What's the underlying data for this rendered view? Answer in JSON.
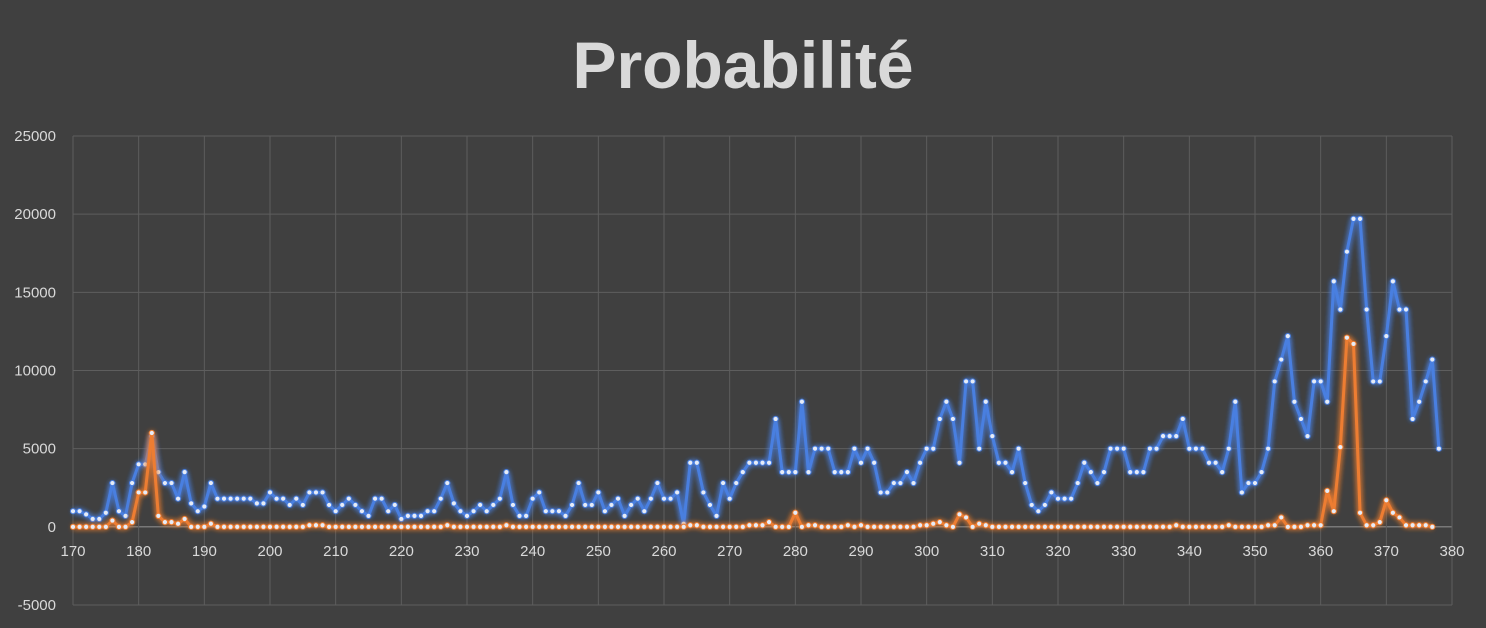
{
  "chart_data": {
    "type": "line",
    "title": "Probabilité",
    "xlabel": "",
    "ylabel": "",
    "xlim": [
      170,
      380
    ],
    "ylim": [
      -5000,
      25000
    ],
    "x_ticks": [
      "170",
      "180",
      "190",
      "200",
      "210",
      "220",
      "230",
      "240",
      "250",
      "260",
      "270",
      "280",
      "290",
      "300",
      "310",
      "320",
      "330",
      "340",
      "350",
      "360",
      "370",
      "380"
    ],
    "y_ticks": [
      "-5000",
      "0",
      "5000",
      "10000",
      "15000",
      "20000",
      "25000"
    ],
    "grid": true,
    "legend": "none",
    "x_start": 170,
    "x_end": 376,
    "series": [
      {
        "color": "#4a7fe0",
        "values": [
          1000,
          1000,
          800,
          500,
          500,
          900,
          2800,
          1000,
          700,
          2800,
          4000,
          4000,
          5800,
          3500,
          2800,
          2800,
          1800,
          3500,
          1500,
          1000,
          1300,
          2800,
          1800,
          1800,
          1800,
          1800,
          1800,
          1800,
          1500,
          1500,
          2200,
          1800,
          1800,
          1400,
          1800,
          1400,
          2200,
          2200,
          2200,
          1400,
          1000,
          1400,
          1800,
          1400,
          1000,
          700,
          1800,
          1800,
          1000,
          1400,
          500,
          700,
          700,
          700,
          1000,
          1000,
          1800,
          2800,
          1500,
          1000,
          700,
          1000,
          1400,
          1000,
          1400,
          1800,
          3500,
          1400,
          700,
          700,
          1800,
          2200,
          1000,
          1000,
          1000,
          700,
          1400,
          2800,
          1400,
          1400,
          2200,
          1000,
          1400,
          1800,
          700,
          1400,
          1800,
          1000,
          1800,
          2800,
          1800,
          1800,
          2200,
          200,
          4100,
          4100,
          2200,
          1400,
          700,
          2800,
          1800,
          2800,
          3500,
          4100,
          4100,
          4100,
          4100,
          6900,
          3500,
          3500,
          3500,
          8000,
          3500,
          5000,
          5000,
          5000,
          3500,
          3500,
          3500,
          5000,
          4100,
          5000,
          4100,
          2200,
          2200,
          2800,
          2800,
          3500,
          2800,
          4100,
          5000,
          5000,
          6900,
          8000,
          6900,
          4100,
          9300,
          9300,
          5000,
          8000,
          5800,
          4100,
          4100,
          3500,
          5000,
          2800,
          1400,
          1000,
          1400,
          2200,
          1800,
          1800,
          1800,
          2800,
          4100,
          3500,
          2800,
          3500,
          5000,
          5000,
          5000,
          3500,
          3500,
          3500,
          5000,
          5000,
          5800,
          5800,
          5800,
          6900,
          5000,
          5000,
          5000,
          4100,
          4100,
          3500,
          5000,
          8000,
          2200,
          2800,
          2800,
          3500,
          5000,
          9300,
          10700,
          12200,
          8000,
          6900,
          5800,
          9300,
          9300,
          8000,
          15700,
          13900,
          17600,
          19700,
          19700,
          13900,
          9300,
          9300,
          12200,
          15700,
          13900,
          13900,
          6900,
          8000,
          9300,
          10700,
          5000
        ]
      },
      {
        "color": "#ed7d31",
        "values": [
          0,
          0,
          0,
          0,
          0,
          0,
          400,
          0,
          0,
          300,
          2200,
          2200,
          6000,
          700,
          300,
          300,
          200,
          500,
          0,
          0,
          0,
          200,
          0,
          0,
          0,
          0,
          0,
          0,
          0,
          0,
          0,
          0,
          0,
          0,
          0,
          0,
          100,
          100,
          100,
          0,
          0,
          0,
          0,
          0,
          0,
          0,
          0,
          0,
          0,
          0,
          0,
          0,
          0,
          0,
          0,
          0,
          0,
          100,
          0,
          0,
          0,
          0,
          0,
          0,
          0,
          0,
          100,
          0,
          0,
          0,
          0,
          0,
          0,
          0,
          0,
          0,
          0,
          0,
          0,
          0,
          0,
          0,
          0,
          0,
          0,
          0,
          0,
          0,
          0,
          0,
          0,
          0,
          0,
          0,
          100,
          100,
          0,
          0,
          0,
          0,
          0,
          0,
          0,
          100,
          100,
          100,
          300,
          0,
          0,
          0,
          900,
          0,
          100,
          100,
          0,
          0,
          0,
          0,
          100,
          0,
          100,
          0,
          0,
          0,
          0,
          0,
          0,
          0,
          0,
          100,
          100,
          200,
          300,
          100,
          0,
          800,
          600,
          0,
          200,
          100,
          0,
          0,
          0,
          0,
          0,
          0,
          0,
          0,
          0,
          0,
          0,
          0,
          0,
          0,
          0,
          0,
          0,
          0,
          0,
          0,
          0,
          0,
          0,
          0,
          0,
          0,
          0,
          0,
          100,
          0,
          0,
          0,
          0,
          0,
          0,
          0,
          100,
          0,
          0,
          0,
          0,
          0,
          100,
          100,
          600,
          0,
          0,
          0,
          100,
          100,
          100,
          2300,
          1000,
          5100,
          12100,
          11700,
          900,
          100,
          100,
          300,
          1700,
          900,
          600,
          100,
          100,
          100,
          100,
          0
        ]
      }
    ]
  }
}
